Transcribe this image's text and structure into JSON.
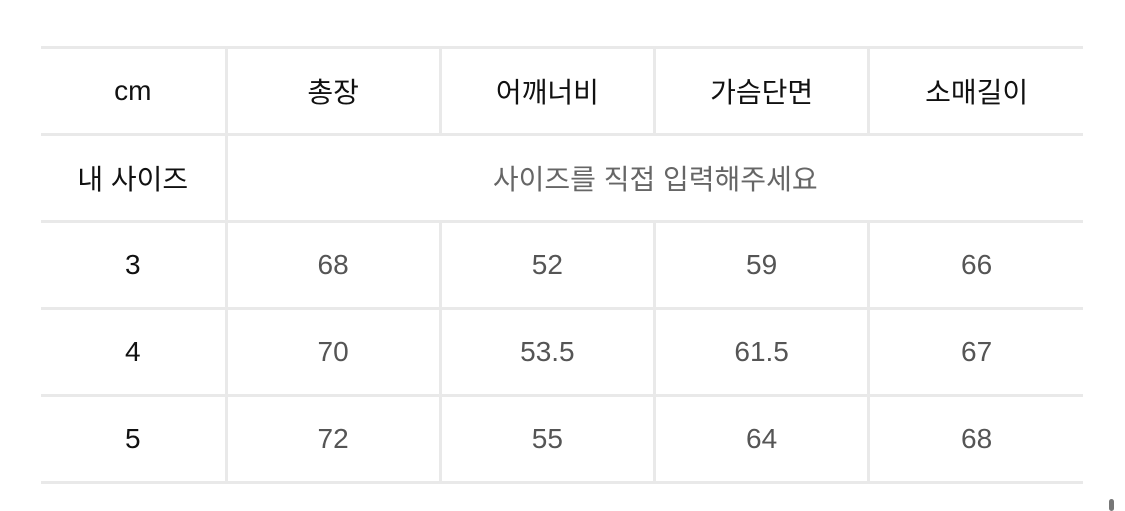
{
  "table": {
    "corner": "cm",
    "columns": [
      "총장",
      "어깨너비",
      "가슴단면",
      "소매길이"
    ],
    "my_size_label": "내 사이즈",
    "my_size_placeholder": "사이즈를 직접 입력해주세요",
    "rows": [
      {
        "size": "3",
        "values": [
          "68",
          "52",
          "59",
          "66"
        ]
      },
      {
        "size": "4",
        "values": [
          "70",
          "53.5",
          "61.5",
          "67"
        ]
      },
      {
        "size": "5",
        "values": [
          "72",
          "55",
          "64",
          "68"
        ]
      }
    ]
  }
}
